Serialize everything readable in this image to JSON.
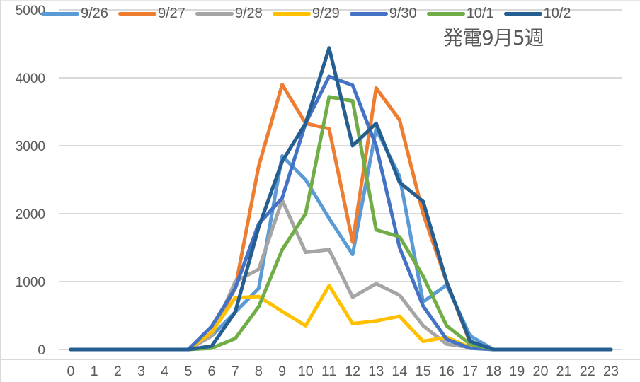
{
  "chart_data": {
    "type": "line",
    "title": "",
    "annotation": "発電9月5週",
    "xlabel": "",
    "ylabel": "",
    "ylim": [
      0,
      5000
    ],
    "yticks": [
      0,
      1000,
      2000,
      3000,
      4000,
      5000
    ],
    "grid": true,
    "legend_position": "top",
    "x": [
      0,
      1,
      2,
      3,
      4,
      5,
      6,
      7,
      8,
      9,
      10,
      11,
      12,
      13,
      14,
      15,
      16,
      17,
      18,
      19,
      20,
      21,
      22,
      23
    ],
    "categories": [
      "0",
      "1",
      "2",
      "3",
      "4",
      "5",
      "6",
      "7",
      "8",
      "9",
      "10",
      "11",
      "12",
      "13",
      "14",
      "15",
      "16",
      "17",
      "18",
      "19",
      "20",
      "21",
      "22",
      "23"
    ],
    "series": [
      {
        "name": "9/26",
        "color": "#5B9BD5",
        "values": [
          0,
          0,
          0,
          0,
          0,
          0,
          200,
          550,
          900,
          2850,
          2500,
          1930,
          1400,
          3250,
          2550,
          700,
          950,
          200,
          0,
          0,
          0,
          0,
          0,
          0
        ]
      },
      {
        "name": "9/27",
        "color": "#ED7D31",
        "values": [
          0,
          0,
          0,
          0,
          0,
          0,
          250,
          900,
          2700,
          3900,
          3330,
          3250,
          1580,
          3850,
          3380,
          2000,
          1000,
          100,
          0,
          0,
          0,
          0,
          0,
          0
        ]
      },
      {
        "name": "9/28",
        "color": "#A5A5A5",
        "values": [
          0,
          0,
          0,
          0,
          0,
          0,
          200,
          1000,
          1180,
          2200,
          1430,
          1470,
          770,
          970,
          800,
          350,
          80,
          30,
          0,
          0,
          0,
          0,
          0,
          0
        ]
      },
      {
        "name": "9/29",
        "color": "#FFC000",
        "values": [
          0,
          0,
          0,
          0,
          0,
          0,
          250,
          760,
          780,
          560,
          350,
          940,
          380,
          420,
          490,
          120,
          180,
          30,
          0,
          0,
          0,
          0,
          0,
          0
        ]
      },
      {
        "name": "9/30",
        "color": "#4472C4",
        "values": [
          0,
          0,
          0,
          0,
          0,
          0,
          340,
          900,
          1850,
          2230,
          3330,
          4020,
          3890,
          3000,
          1500,
          640,
          150,
          20,
          0,
          0,
          0,
          0,
          0,
          0
        ]
      },
      {
        "name": "10/1",
        "color": "#70AD47",
        "values": [
          0,
          0,
          0,
          0,
          0,
          0,
          20,
          160,
          630,
          1470,
          2000,
          3720,
          3660,
          1760,
          1660,
          1080,
          350,
          80,
          0,
          0,
          0,
          0,
          0,
          0
        ]
      },
      {
        "name": "10/2",
        "color": "#255E91",
        "values": [
          0,
          0,
          0,
          0,
          0,
          0,
          50,
          550,
          1800,
          2770,
          3330,
          4440,
          3000,
          3330,
          2460,
          2180,
          1000,
          120,
          0,
          0,
          0,
          0,
          0,
          0
        ]
      }
    ]
  },
  "legend": {
    "items": [
      {
        "label": "9/26",
        "color": "#5B9BD5"
      },
      {
        "label": "9/27",
        "color": "#ED7D31"
      },
      {
        "label": "9/28",
        "color": "#A5A5A5"
      },
      {
        "label": "9/29",
        "color": "#FFC000"
      },
      {
        "label": "9/30",
        "color": "#4472C4"
      },
      {
        "label": "10/1",
        "color": "#70AD47"
      },
      {
        "label": "10/2",
        "color": "#255E91"
      }
    ]
  },
  "colors": {
    "gridline": "#D9D9D9",
    "axis_text": "#595959"
  }
}
